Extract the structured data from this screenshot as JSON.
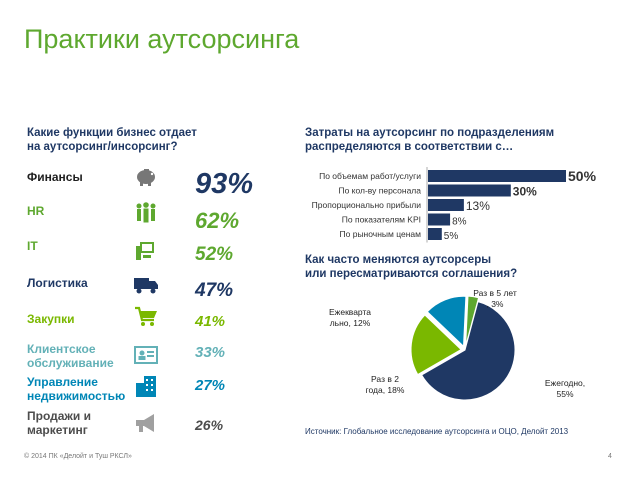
{
  "title": "Практики аутсорсинга",
  "left": {
    "heading_line1": "Какие функции бизнес отдает",
    "heading_line2": "на аутсорсинг/инсорсинг?",
    "functions": [
      {
        "line1": "Финансы",
        "line2": "",
        "icon": "piggy-bank-icon",
        "pct": "93%",
        "color": "#1f1f1f",
        "pct_color": "#1f3864"
      },
      {
        "line1": "HR",
        "line2": "",
        "icon": "people-group-icon",
        "pct": "62%",
        "color": "#5ea82f",
        "pct_color": "#5ea82f"
      },
      {
        "line1": "IT",
        "line2": "",
        "icon": "computer-icon",
        "pct": "52%",
        "color": "#5ea82f",
        "pct_color": "#5ea82f"
      },
      {
        "line1": "Логистика",
        "line2": "",
        "icon": "truck-icon",
        "pct": "47%",
        "color": "#1f3864",
        "pct_color": "#1f3864"
      },
      {
        "line1": "Закупки",
        "line2": "",
        "icon": "shopping-cart-icon",
        "pct": "41%",
        "color": "#7ab800",
        "pct_color": "#7ab800"
      },
      {
        "line1": "Клиентское",
        "line2": "обслуживание",
        "icon": "id-card-icon",
        "pct": "33%",
        "color": "#63b1b7",
        "pct_color": "#63b1b7"
      },
      {
        "line1": "Управление",
        "line2": "недвижимостью",
        "icon": "building-icon",
        "pct": "27%",
        "color": "#0086b6",
        "pct_color": "#0086b6"
      },
      {
        "line1": "Продажи и",
        "line2": "маркетинг",
        "icon": "megaphone-icon",
        "pct": "26%",
        "color": "#4d4d4d",
        "pct_color": "#4d4d4d"
      }
    ]
  },
  "right_top": {
    "heading_line1": "Затраты на аутсорсинг по подразделениям",
    "heading_line2": "распределяются в соответствии с…"
  },
  "right_bottom": {
    "heading_line1": "Как часто меняются аутсорсеры",
    "heading_line2": "или пересматриваются соглашения?"
  },
  "chart_data": [
    {
      "type": "bar",
      "orientation": "horizontal",
      "title": "Затраты на аутсорсинг по подразделениям распределяются в соответствии с…",
      "categories": [
        "По объемам работ/услуги",
        "По кол-ву персонала",
        "Пропорционально прибыли",
        "По показателям KPI",
        "По рыночным ценам"
      ],
      "values": [
        50,
        30,
        13,
        8,
        5
      ],
      "value_labels": [
        "50%",
        "30%",
        "13%",
        "8%",
        "5%"
      ],
      "xlim": [
        0,
        50
      ],
      "colors": {
        "bar": "#1f3864"
      }
    },
    {
      "type": "pie",
      "title": "Как часто меняются аутсорсеры или пересматриваются соглашения?",
      "slices": [
        {
          "label_line1": "Ежегодно,",
          "label_line2": "55%",
          "value": 55,
          "color": "#1f3864"
        },
        {
          "label_line1": "Раз в 2",
          "label_line2": "года, 18%",
          "value": 18,
          "color": "#7ab800"
        },
        {
          "label_line1": "Ежекварта",
          "label_line2": "льно, 12%",
          "value": 12,
          "color": "#0086b6"
        },
        {
          "label_line1": "Раз в 5 лет",
          "label_line2": ", 3%",
          "value": 3,
          "color": "#5ea82f"
        }
      ]
    }
  ],
  "source": "Источник: Глобальное исследование аутсорсинга и ОЦО, Делойт 2013",
  "footer": {
    "copyright": "© 2014 ПК «Делойт и Туш РКСЛ»",
    "page": "4"
  }
}
